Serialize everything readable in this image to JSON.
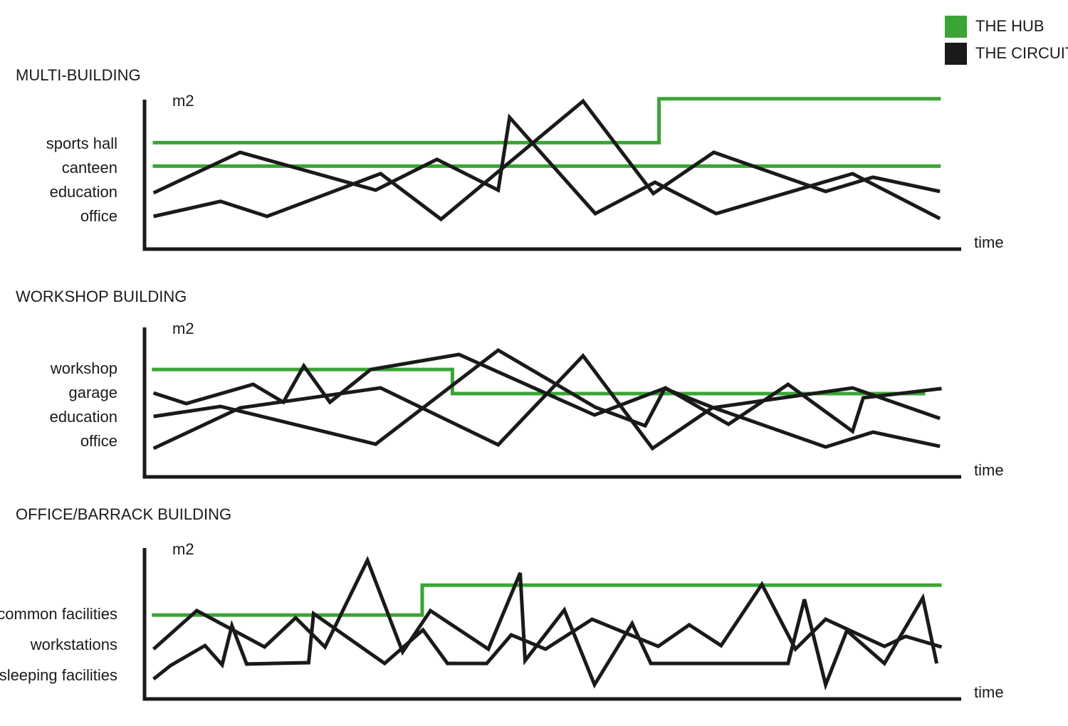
{
  "legend": [
    {
      "label": "THE HUB",
      "color": "#3aa535"
    },
    {
      "label": "THE CIRCUIT",
      "color": "#1a1a1a"
    }
  ],
  "chart_data": [
    {
      "type": "line",
      "title": "MULTI-BUILDING",
      "ylabel": "m2",
      "xlabel": "time",
      "xlim": [
        0,
        100
      ],
      "ylim": [
        0,
        100
      ],
      "y_labels": [
        {
          "text": "sports hall",
          "color": "#3aa535"
        },
        {
          "text": "canteen",
          "color": "#3aa535"
        },
        {
          "text": "education",
          "color": "#1a1a1a"
        },
        {
          "text": "office",
          "color": "#1a1a1a"
        }
      ],
      "series": [
        {
          "color": "#3aa535",
          "x": [
            1,
            63,
            63,
            97.5
          ],
          "values": [
            68,
            68,
            96,
            96
          ]
        },
        {
          "color": "#3aa535",
          "x": [
            1,
            97.5
          ],
          "values": [
            53,
            53
          ]
        },
        {
          "color": "#1a1a1a",
          "x": [
            1.1,
            11.7,
            28.3,
            35.8,
            43.3,
            44.7,
            55.2,
            62.5,
            70,
            86.7,
            97.4
          ],
          "values": [
            35.9,
            61.8,
            37.7,
            57.3,
            37.7,
            84.1,
            22.7,
            42.7,
            22.7,
            48.2,
            19.5
          ]
        },
        {
          "color": "#1a1a1a",
          "x": [
            1.1,
            9.3,
            15,
            28.9,
            36.3,
            53.7,
            62.3,
            69.7,
            83.4,
            89.2,
            97.4
          ],
          "values": [
            20.9,
            30.5,
            20.9,
            48.2,
            19.1,
            94.5,
            35.5,
            61.8,
            36.8,
            45.9,
            36.8
          ]
        }
      ]
    },
    {
      "type": "line",
      "title": "WORKSHOP BUILDING",
      "ylabel": "m2",
      "xlabel": "time",
      "xlim": [
        0,
        100
      ],
      "ylim": [
        0,
        100
      ],
      "y_labels": [
        {
          "text": "workshop",
          "color": "#3aa535"
        },
        {
          "text": "garage",
          "color": "#1a1a1a"
        },
        {
          "text": "education",
          "color": "#1a1a1a"
        },
        {
          "text": "office",
          "color": "#1a1a1a"
        }
      ],
      "series": [
        {
          "color": "#3aa535",
          "x": [
            0.9,
            37.7,
            37.7,
            95.6
          ],
          "values": [
            68.6,
            68.6,
            53.2,
            53.2
          ]
        },
        {
          "color": "#1a1a1a",
          "x": [
            1.1,
            5.1,
            13.3,
            17,
            19.5,
            22.7,
            27.7,
            38.5,
            55.1,
            63.8,
            71.5,
            78.8,
            86.7,
            88,
            97.6
          ],
          "values": [
            53.6,
            46.8,
            59.1,
            47.7,
            70.9,
            47.7,
            68.6,
            78.2,
            39.5,
            56.8,
            33.6,
            59.1,
            29.1,
            50.5,
            56.4
          ]
        },
        {
          "color": "#1a1a1a",
          "x": [
            1.1,
            9.3,
            28.3,
            43.3,
            55.2,
            61.3,
            63.7,
            69.5,
            83.4,
            89.2,
            97.4
          ],
          "values": [
            38.6,
            45,
            20.9,
            80.9,
            44.5,
            32.7,
            56.4,
            44.5,
            19.1,
            28.6,
            19.5
          ]
        },
        {
          "color": "#1a1a1a",
          "x": [
            1.1,
            11.7,
            28.9,
            43.3,
            53.7,
            62.2,
            69.5,
            86.7,
            97.4
          ],
          "values": [
            18.2,
            44.1,
            56.8,
            20.5,
            77.3,
            18.2,
            44.1,
            56.8,
            37.3
          ]
        }
      ]
    },
    {
      "type": "line",
      "title": "OFFICE/BARRACK BUILDING",
      "ylabel": "m2",
      "xlabel": "time",
      "xlim": [
        0,
        100
      ],
      "ylim": [
        0,
        100
      ],
      "y_labels": [
        {
          "text": "common facilities",
          "color": "#3aa535"
        },
        {
          "text": "workstations",
          "color": "#1a1a1a"
        },
        {
          "text": "sleeping facilities",
          "color": "#1a1a1a"
        }
      ],
      "series": [
        {
          "color": "#3aa535",
          "x": [
            0.9,
            34,
            34,
            97.6
          ],
          "values": [
            53.6,
            53.6,
            72.7,
            72.7
          ]
        },
        {
          "color": "#1a1a1a",
          "x": [
            1.1,
            6.4,
            14.7,
            18.5,
            22.1,
            27.3,
            31.6,
            35,
            42.1,
            46,
            46.6,
            51.4,
            55.1,
            59.7,
            62,
            78.8,
            80.8,
            83.4,
            86,
            90.6,
            95.3,
            97
          ],
          "values": [
            31.8,
            56.4,
            33.2,
            51.8,
            33.2,
            88.6,
            30,
            56.4,
            31.8,
            80.5,
            24.5,
            56.8,
            9.1,
            48.2,
            22.7,
            22.7,
            63.6,
            9.1,
            43.6,
            22.7,
            64.5,
            22.7
          ]
        },
        {
          "color": "#1a1a1a",
          "x": [
            1.1,
            3.2,
            7.4,
            9.5,
            10.7,
            12.5,
            20.1,
            20.7,
            29.4,
            34.1,
            37.1,
            41.9,
            44.9,
            49.1,
            54.8,
            62.9,
            66.7,
            70.6,
            75.6,
            79.7,
            83.4,
            90.6,
            93.2,
            97.6
          ],
          "values": [
            12.7,
            21.4,
            34.1,
            21.8,
            46.8,
            22.3,
            23.2,
            54.5,
            22.7,
            44.1,
            22.7,
            22.7,
            40.9,
            31.8,
            50.9,
            33.6,
            47.3,
            34.1,
            73.2,
            31.8,
            50.9,
            33.6,
            40,
            33.2
          ]
        }
      ]
    }
  ]
}
